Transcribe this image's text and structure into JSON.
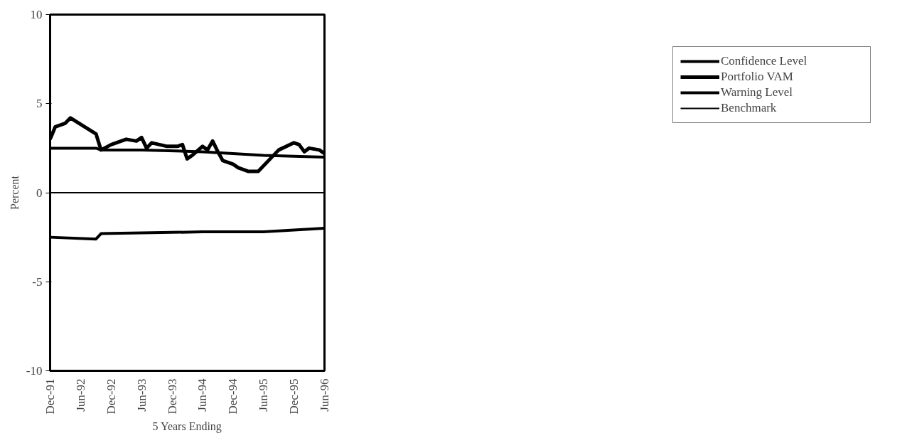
{
  "chart_data": {
    "type": "line",
    "xlabel": "5 Years Ending",
    "ylabel": "Percent",
    "xlim": [
      "1991-12",
      "1996-06"
    ],
    "ylim": [
      -10,
      10
    ],
    "xticks": [
      {
        "value": "1991-12",
        "label": "Dec-91"
      },
      {
        "value": "1992-06",
        "label": "Jun-92"
      },
      {
        "value": "1992-12",
        "label": "Dec-92"
      },
      {
        "value": "1993-06",
        "label": "Jun-93"
      },
      {
        "value": "1993-12",
        "label": "Dec-93"
      },
      {
        "value": "1994-06",
        "label": "Jun-94"
      },
      {
        "value": "1994-12",
        "label": "Dec-94"
      },
      {
        "value": "1995-06",
        "label": "Jun-95"
      },
      {
        "value": "1995-12",
        "label": "Dec-95"
      },
      {
        "value": "1996-06",
        "label": "Jun-96"
      }
    ],
    "yticks": [
      -10,
      -5,
      0,
      5,
      10
    ],
    "grid": false,
    "legend": "right",
    "marker": "none",
    "line_style": "solid",
    "series": [
      {
        "name": "Confidence Level",
        "color": "#000000",
        "x": [
          "1991-12",
          "1992-09",
          "1992-10",
          "1993-06",
          "1994-06",
          "1995-06",
          "1996-06"
        ],
        "values": [
          2.5,
          2.5,
          2.4,
          2.4,
          2.3,
          2.1,
          2.0
        ]
      },
      {
        "name": "Portfolio VAM",
        "color": "#000000",
        "x": [
          "1991-12",
          "1992-01",
          "1992-03",
          "1992-04",
          "1992-09",
          "1992-10",
          "1992-12",
          "1993-03",
          "1993-05",
          "1993-06",
          "1993-07",
          "1993-08",
          "1993-11",
          "1994-01",
          "1994-02",
          "1994-03",
          "1994-04",
          "1994-06",
          "1994-07",
          "1994-08",
          "1994-09",
          "1994-10",
          "1994-12",
          "1995-01",
          "1995-03",
          "1995-05",
          "1995-08",
          "1995-09",
          "1995-12",
          "1996-01",
          "1996-02",
          "1996-03",
          "1996-05",
          "1996-06"
        ],
        "values": [
          3.0,
          3.7,
          3.9,
          4.2,
          3.3,
          2.4,
          2.7,
          3.0,
          2.9,
          3.1,
          2.5,
          2.8,
          2.6,
          2.6,
          2.7,
          1.9,
          2.1,
          2.6,
          2.4,
          2.9,
          2.3,
          1.8,
          1.6,
          1.4,
          1.2,
          1.2,
          2.1,
          2.4,
          2.8,
          2.7,
          2.3,
          2.5,
          2.4,
          2.2
        ]
      },
      {
        "name": "Warning Level",
        "color": "#000000",
        "x": [
          "1991-12",
          "1992-09",
          "1992-10",
          "1994-06",
          "1995-06",
          "1996-06"
        ],
        "values": [
          -2.5,
          -2.6,
          -2.3,
          -2.2,
          -2.2,
          -2.0
        ]
      },
      {
        "name": "Benchmark",
        "color": "#000000",
        "x": [
          "1991-12",
          "1996-06"
        ],
        "values": [
          0,
          0
        ]
      }
    ]
  }
}
